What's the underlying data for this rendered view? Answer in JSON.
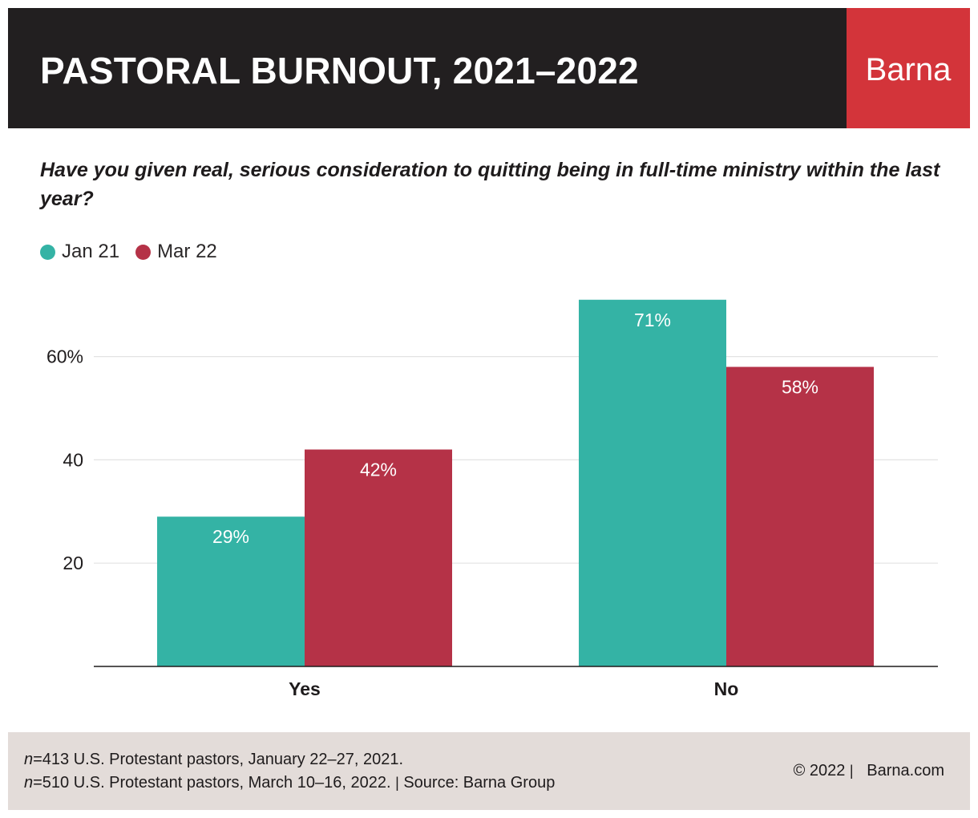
{
  "header": {
    "title": "PASTORAL BURNOUT, 2021–2022",
    "brand": "Barna"
  },
  "chart_data": {
    "type": "bar",
    "title": "PASTORAL BURNOUT, 2021–2022",
    "subtitle": "Have you given real, serious consideration to quitting being in full-time ministry within the last year?",
    "categories": [
      "Yes",
      "No"
    ],
    "series": [
      {
        "name": "Jan 21",
        "color": "#34b3a5",
        "values": [
          29,
          71
        ],
        "labels": [
          "29%",
          "71%"
        ]
      },
      {
        "name": "Mar 22",
        "color": "#b53247",
        "values": [
          42,
          58
        ],
        "labels": [
          "42%",
          "58%"
        ]
      }
    ],
    "yticks": [
      {
        "value": 20,
        "label": "20"
      },
      {
        "value": 40,
        "label": "40"
      },
      {
        "value": 60,
        "label": "60%"
      }
    ],
    "ylim": [
      0,
      71
    ],
    "xlabel": "",
    "ylabel": "",
    "grid": true,
    "legend": "top-left"
  },
  "footer": {
    "note1_n": "n",
    "note1_text": "=413 U.S. Protestant pastors, January 22–27, 2021.",
    "note2_n": "n",
    "note2_text": "=510 U.S. Protestant pastors, March 10–16, 2022.",
    "separator": "|",
    "source": "Source: Barna Group",
    "copyright": "© 2022",
    "website": "Barna.com"
  }
}
